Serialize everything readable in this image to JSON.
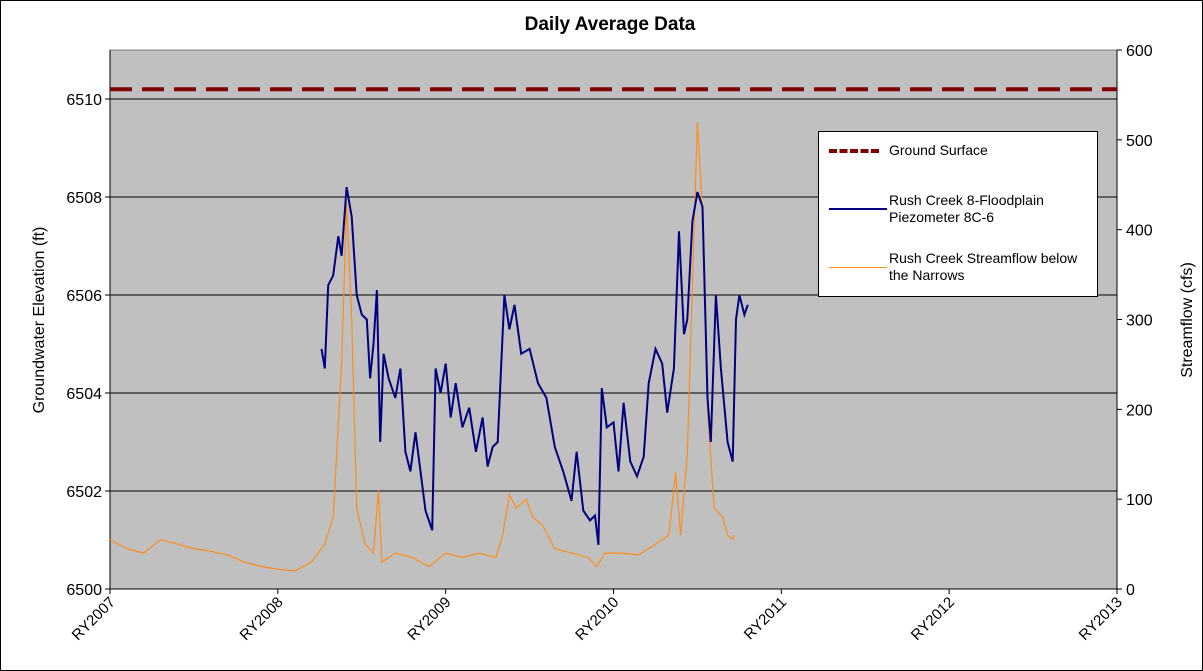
{
  "chart_data": {
    "type": "line",
    "title": "Daily Average Data",
    "y_label": "Groundwater Elevation (ft)",
    "y2_label": "Streamflow (cfs)",
    "xlim": [
      2007,
      2013
    ],
    "xticks": [
      {
        "value": 2007,
        "label": "RY2007"
      },
      {
        "value": 2008,
        "label": "RY2008"
      },
      {
        "value": 2009,
        "label": "RY2009"
      },
      {
        "value": 2010,
        "label": "RY2010"
      },
      {
        "value": 2011,
        "label": "RY2011"
      },
      {
        "value": 2012,
        "label": "RY2012"
      },
      {
        "value": 2013,
        "label": "RY2013"
      }
    ],
    "ylim": [
      6500,
      6511
    ],
    "yticks": [
      6500,
      6502,
      6504,
      6506,
      6508,
      6510
    ],
    "y2lim": [
      0,
      600
    ],
    "y2ticks": [
      0,
      100,
      200,
      300,
      400,
      500,
      600
    ],
    "grid": true,
    "series": [
      {
        "name": "Ground Surface",
        "color": "#800000",
        "dashed": true,
        "x": [
          2007,
          2013
        ],
        "values": [
          6510.2,
          6510.2
        ]
      },
      {
        "name": "Rush Creek 8-Floodplain Piezometer 8C-6",
        "color": "#000080",
        "x": [
          2008.26,
          2008.28,
          2008.3,
          2008.33,
          2008.36,
          2008.38,
          2008.41,
          2008.44,
          2008.47,
          2008.5,
          2008.53,
          2008.55,
          2008.57,
          2008.59,
          2008.61,
          2008.63,
          2008.66,
          2008.7,
          2008.73,
          2008.76,
          2008.79,
          2008.82,
          2008.85,
          2008.88,
          2008.92,
          2008.94,
          2008.97,
          2009.0,
          2009.03,
          2009.06,
          2009.1,
          2009.14,
          2009.18,
          2009.22,
          2009.25,
          2009.28,
          2009.31,
          2009.35,
          2009.38,
          2009.41,
          2009.45,
          2009.5,
          2009.55,
          2009.6,
          2009.65,
          2009.7,
          2009.75,
          2009.78,
          2009.82,
          2009.86,
          2009.89,
          2009.91,
          2009.93,
          2009.96,
          2010.0,
          2010.03,
          2010.06,
          2010.1,
          2010.14,
          2010.18,
          2010.21,
          2010.25,
          2010.29,
          2010.32,
          2010.36,
          2010.39,
          2010.42,
          2010.44,
          2010.47,
          2010.5,
          2010.53,
          2010.56,
          2010.58,
          2010.61,
          2010.64,
          2010.68,
          2010.71,
          2010.73,
          2010.75,
          2010.78,
          2010.8
        ],
        "values": [
          6504.9,
          6504.5,
          6506.2,
          6506.4,
          6507.2,
          6506.8,
          6508.2,
          6507.6,
          6506.0,
          6505.6,
          6505.5,
          6504.3,
          6505.0,
          6506.1,
          6503.0,
          6504.8,
          6504.3,
          6503.9,
          6504.5,
          6502.8,
          6502.4,
          6503.2,
          6502.4,
          6501.6,
          6501.2,
          6504.5,
          6504.0,
          6504.6,
          6503.5,
          6504.2,
          6503.3,
          6503.7,
          6502.8,
          6503.5,
          6502.5,
          6502.9,
          6503.0,
          6506.0,
          6505.3,
          6505.8,
          6504.8,
          6504.9,
          6504.2,
          6503.9,
          6502.9,
          6502.4,
          6501.8,
          6502.8,
          6501.6,
          6501.4,
          6501.5,
          6500.9,
          6504.1,
          6503.3,
          6503.4,
          6502.4,
          6503.8,
          6502.6,
          6502.3,
          6502.7,
          6504.2,
          6504.9,
          6504.6,
          6503.6,
          6504.5,
          6507.3,
          6505.2,
          6505.5,
          6507.5,
          6508.1,
          6507.8,
          6503.9,
          6503.0,
          6506.0,
          6504.5,
          6503.0,
          6502.6,
          6505.5,
          6506.0,
          6505.6,
          6505.8
        ]
      },
      {
        "name": "Rush Creek Streamflow below the Narrows",
        "color": "#ff8c1a",
        "axis": "y2",
        "x": [
          2007.0,
          2007.1,
          2007.2,
          2007.3,
          2007.4,
          2007.5,
          2007.6,
          2007.7,
          2007.8,
          2007.9,
          2008.0,
          2008.1,
          2008.2,
          2008.28,
          2008.33,
          2008.38,
          2008.41,
          2008.44,
          2008.47,
          2008.52,
          2008.57,
          2008.6,
          2008.62,
          2008.7,
          2008.8,
          2008.9,
          2009.0,
          2009.1,
          2009.2,
          2009.3,
          2009.34,
          2009.38,
          2009.42,
          2009.48,
          2009.52,
          2009.58,
          2009.65,
          2009.75,
          2009.85,
          2009.9,
          2009.95,
          2010.05,
          2010.15,
          2010.25,
          2010.33,
          2010.37,
          2010.4,
          2010.44,
          2010.48,
          2010.5,
          2010.53,
          2010.56,
          2010.6,
          2010.65,
          2010.68,
          2010.71,
          2010.72
        ],
        "values": [
          55,
          45,
          40,
          55,
          50,
          45,
          42,
          38,
          30,
          25,
          22,
          20,
          30,
          50,
          80,
          250,
          430,
          300,
          90,
          50,
          40,
          110,
          30,
          40,
          35,
          25,
          40,
          35,
          40,
          35,
          60,
          105,
          90,
          100,
          80,
          70,
          45,
          40,
          35,
          25,
          40,
          40,
          38,
          50,
          60,
          130,
          60,
          150,
          400,
          520,
          420,
          200,
          90,
          80,
          60,
          55,
          60
        ]
      }
    ]
  }
}
